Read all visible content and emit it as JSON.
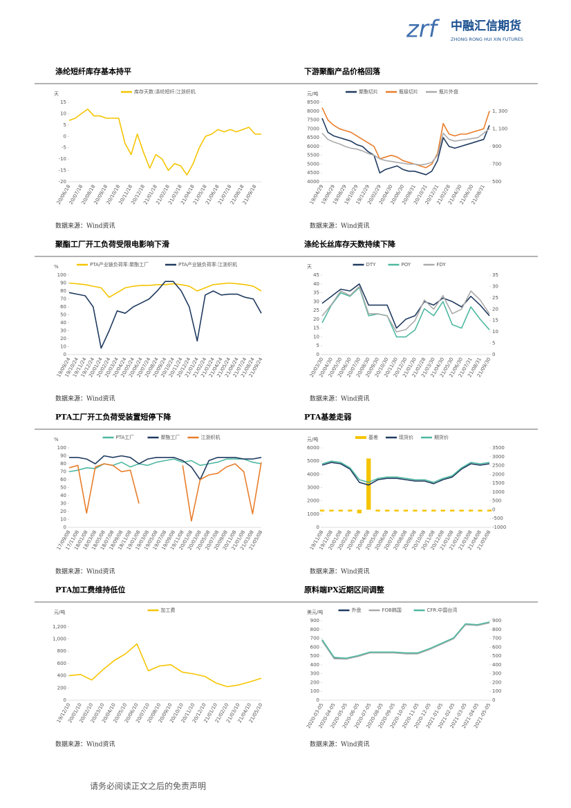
{
  "header": {
    "mark": "zrf",
    "name": "中融汇信期货",
    "sub": "ZHONG RONG HUI XIN FUTURES"
  },
  "footer": "请务必阅读正文之后的免责声明",
  "chart_data": [
    {
      "type": "line",
      "title": "涤纶短纤库存基本持平",
      "source": "数据来源：Wind资讯",
      "yunit": "天",
      "categories": [
        "20/06/18",
        null,
        "20/07/18",
        null,
        "20/08/18",
        null,
        "20/09/18",
        null,
        "20/10/18",
        null,
        "20/11/18",
        null,
        "20/12/18",
        null,
        "21/01/18",
        null,
        "21/02/18",
        null,
        "21/03/18",
        null,
        "21/04/18",
        null,
        "21/05/18",
        null,
        "21/06/18",
        null,
        "21/07/18",
        null,
        "21/08/18",
        null,
        "21/09/18",
        null
      ],
      "ylim": [
        -20,
        15
      ],
      "yticks": [
        -20,
        -15,
        -10,
        -5,
        0,
        5,
        10,
        15
      ],
      "series": [
        {
          "name": "库存天数:涤纶短纤:江浙织机",
          "color": "#f5c400",
          "values": [
            7,
            8,
            10,
            12,
            9,
            9,
            8,
            8,
            8,
            -3,
            -8,
            1,
            -7,
            -14,
            -8,
            -10,
            -15,
            -12,
            -13,
            -17,
            -12,
            -5,
            0,
            1,
            3,
            2,
            3,
            2,
            3,
            4,
            1,
            1
          ]
        }
      ]
    },
    {
      "type": "line",
      "title": "下游聚酯产品价格回落",
      "source": "数据来源：Wind资讯",
      "yunit": "元/吨",
      "categories": [
        "19/04/29",
        null,
        "19/06/29",
        null,
        "19/08/29",
        null,
        "19/10/29",
        null,
        "19/12/29",
        null,
        "20/02/29",
        null,
        "20/04/30",
        null,
        "20/06/30",
        null,
        "20/08/31",
        null,
        "20/10/31",
        null,
        "20/12/31",
        null,
        "21/02/28",
        null,
        "21/04/30",
        null,
        "21/06/30",
        null,
        "21/08/31",
        null
      ],
      "ylim": [
        4000,
        8500
      ],
      "yticks": [
        4000,
        4500,
        5000,
        5500,
        6000,
        6500,
        7000,
        7500,
        8000,
        8500
      ],
      "y2lim": [
        500,
        1400
      ],
      "y2ticks": [
        500,
        700,
        900,
        {
          "value": 1100,
          "label": "1, 100"
        },
        {
          "value": 1300,
          "label": "1, 300"
        }
      ],
      "series": [
        {
          "name": "聚酯切片",
          "color": "#1f3a5f",
          "values": [
            7600,
            6800,
            6600,
            6500,
            6400,
            6300,
            6100,
            6000,
            5700,
            5500,
            4500,
            4700,
            4800,
            4900,
            4700,
            4600,
            4600,
            4500,
            4400,
            4600,
            5200,
            6500,
            6000,
            5900,
            6000,
            6100,
            6200,
            6300,
            6400,
            7200
          ]
        },
        {
          "name": "瓶级切片",
          "color": "#e87d2a",
          "values": [
            8200,
            7500,
            7200,
            7000,
            6900,
            6800,
            6600,
            6400,
            6200,
            6000,
            5300,
            5400,
            5500,
            5400,
            5200,
            5100,
            5000,
            4900,
            4800,
            5000,
            5600,
            7300,
            6700,
            6600,
            6700,
            6700,
            6800,
            6900,
            7000,
            8000
          ]
        },
        {
          "name": "瓶片外盘",
          "color": "#aaaaaa",
          "axis": "y2",
          "values": [
            1050,
            980,
            950,
            930,
            900,
            880,
            870,
            850,
            820,
            800,
            760,
            740,
            730,
            720,
            710,
            700,
            700,
            690,
            700,
            720,
            800,
            1050,
            980,
            960,
            970,
            980,
            990,
            1000,
            1050,
            1100
          ]
        }
      ]
    },
    {
      "type": "line",
      "title": "聚酯工厂开工负荷受限电影响下滑",
      "source": "数据来源：Wind资讯",
      "yunit": "%",
      "categories": [
        "19/09/24",
        "19/10/24",
        "19/11/24",
        "19/12/24",
        "20/01/24",
        "20/02/24",
        "20/03/24",
        "20/04/24",
        "20/05/24",
        "20/06/24",
        "20/07/24",
        "20/08/24",
        "20/09/24",
        "20/10/24",
        "20/11/24",
        "20/12/24",
        "21/01/24",
        "21/02/24",
        "21/03/24",
        "21/04/24",
        "21/05/24",
        "21/06/24",
        "21/07/24",
        "21/08/24",
        "21/09/24"
      ],
      "ylim": [
        0,
        100
      ],
      "yticks": [
        0,
        10,
        20,
        30,
        40,
        50,
        60,
        70,
        80,
        90,
        100
      ],
      "series": [
        {
          "name": "PTA产业链负荷率:聚酯工厂",
          "color": "#f5c400",
          "values": [
            90,
            89,
            88,
            86,
            84,
            72,
            78,
            84,
            86,
            87,
            87,
            88,
            88,
            89,
            88,
            86,
            80,
            84,
            88,
            89,
            90,
            89,
            88,
            86,
            80
          ]
        },
        {
          "name": "PTA产业链负荷率:江浙织机",
          "color": "#1f3a5f",
          "values": [
            78,
            76,
            74,
            60,
            8,
            30,
            55,
            52,
            60,
            65,
            70,
            80,
            92,
            92,
            80,
            60,
            17,
            75,
            80,
            75,
            76,
            76,
            72,
            70,
            52
          ]
        }
      ]
    },
    {
      "type": "line",
      "title": "涤纶长丝库存天数持续下降",
      "source": "数据来源：Wind资讯",
      "yunit": "天",
      "categories": [
        "20/03/30",
        "20/04/30",
        "20/05/30",
        "20/06/30",
        "20/07/30",
        "20/08/30",
        "20/09/30",
        "20/10/30",
        "20/11/30",
        "20/12/30",
        "21/01/30",
        "21/02/28",
        "21/03/30",
        "21/04/30",
        "21/05/30",
        "21/06/30",
        "21/07/31",
        "21/08/31",
        "21/09/30"
      ],
      "ylim": [
        0,
        45
      ],
      "yticks": [
        0,
        5,
        10,
        15,
        20,
        25,
        30,
        35,
        40,
        45
      ],
      "y2lim": [
        0,
        35
      ],
      "y2ticks": [
        0,
        5,
        10,
        15,
        20,
        25,
        30,
        35
      ],
      "series": [
        {
          "name": "DTY",
          "color": "#1f3a5f",
          "values": [
            29,
            33,
            37,
            36,
            40,
            28,
            28,
            28,
            15,
            20,
            22,
            30,
            28,
            32,
            30,
            27,
            33,
            28,
            22
          ]
        },
        {
          "name": "POY",
          "color": "#4db8a0",
          "values": [
            18,
            28,
            35,
            33,
            38,
            22,
            23,
            22,
            10,
            10,
            14,
            26,
            22,
            30,
            17,
            15,
            27,
            20,
            14
          ]
        },
        {
          "name": "FDY",
          "color": "#aaaaaa",
          "axis": "y2",
          "values": [
            17,
            22,
            28,
            26,
            30,
            18,
            18,
            17,
            10,
            11,
            15,
            24,
            20,
            26,
            18,
            20,
            28,
            24,
            18
          ]
        }
      ]
    },
    {
      "type": "line",
      "title": "PTA工厂开工负荷受装置短停下降",
      "source": "数据来源：Wind资讯",
      "yunit": "%",
      "categories": [
        "17/09/08",
        "17/11/08",
        "18/01/08",
        "18/03/08",
        "18/05/08",
        "18/07/08",
        "18/09/08",
        "18/11/08",
        "19/01/08",
        "19/03/08",
        "19/05/08",
        "19/07/08",
        "19/09/08",
        "19/11/08",
        "20/01/08",
        "20/03/08",
        "20/05/08",
        "20/07/08",
        "20/09/08",
        "20/11/08",
        "21/01/08",
        "21/03/08",
        "21/05/08"
      ],
      "ylim": [
        0,
        100
      ],
      "yticks": [
        0,
        10,
        20,
        30,
        40,
        50,
        60,
        70,
        80,
        90,
        100
      ],
      "series": [
        {
          "name": "PTA工厂",
          "color": "#4db8a0",
          "values": [
            70,
            72,
            75,
            74,
            80,
            78,
            82,
            76,
            80,
            78,
            82,
            84,
            86,
            82,
            84,
            78,
            80,
            82,
            86,
            86,
            86,
            82,
            80
          ]
        },
        {
          "name": "聚酯工厂",
          "color": "#1f3a5f",
          "values": [
            88,
            88,
            86,
            80,
            90,
            88,
            90,
            88,
            80,
            86,
            88,
            88,
            88,
            84,
            76,
            60,
            84,
            88,
            88,
            88,
            86,
            86,
            88
          ]
        },
        {
          "name": "江浙织机",
          "color": "#e87d2a",
          "values": [
            75,
            78,
            18,
            76,
            80,
            78,
            70,
            72,
            30,
            null,
            null,
            null,
            null,
            78,
            8,
            60,
            66,
            68,
            76,
            80,
            70,
            17,
            82
          ]
        }
      ]
    },
    {
      "type": "line",
      "title": "PTA基差走弱",
      "source": "数据来源：Wind资讯",
      "yunit": "元/吨",
      "categories": [
        "19/11/08",
        "19/12/08",
        "20/01/08",
        "20/02/08",
        "20/03/08",
        "20/04/08",
        "20/05/08",
        "20/06/08",
        "20/07/08",
        "20/08/08",
        "20/09/08",
        "20/10/08",
        "20/11/08",
        "20/12/08",
        "21/01/08",
        "21/02/08",
        "21/03/08",
        "21/04/08",
        "21/05/08"
      ],
      "ylim": [
        0,
        6000
      ],
      "yticks": [
        0,
        1000,
        2000,
        3000,
        4000,
        5000,
        6000
      ],
      "y2lim": [
        -1000,
        3500
      ],
      "y2ticks": [
        -1000,
        -500,
        0,
        500,
        1000,
        1500,
        2000,
        2500,
        3000,
        3500
      ],
      "series": [
        {
          "name": "基差",
          "color": "#f5c400",
          "axis": "y2",
          "type": "bar",
          "values": [
            -100,
            -100,
            -100,
            -100,
            -200,
            2900,
            -100,
            -100,
            -100,
            -100,
            -100,
            -100,
            -100,
            -100,
            -100,
            -100,
            -100,
            -100,
            -100
          ]
        },
        {
          "name": "现货价",
          "color": "#1f3a5f",
          "values": [
            4700,
            4900,
            4800,
            4400,
            3400,
            3200,
            3600,
            3700,
            3700,
            3600,
            3500,
            3500,
            3300,
            3600,
            3800,
            4400,
            4800,
            4700,
            4800
          ]
        },
        {
          "name": "期货价",
          "color": "#4db8a0",
          "values": [
            4800,
            5000,
            4900,
            4500,
            3600,
            3400,
            3700,
            3800,
            3800,
            3700,
            3600,
            3600,
            3400,
            3700,
            3900,
            4500,
            4900,
            4800,
            4900
          ]
        }
      ]
    },
    {
      "type": "line",
      "title": "PTA加工费维持低位",
      "source": "数据来源：Wind资讯",
      "yunit": "元/吨",
      "categories": [
        "19/12/10",
        "20/01/10",
        "20/02/10",
        "20/03/10",
        "20/04/10",
        "20/05/10",
        "20/06/10",
        "20/07/10",
        "20/08/10",
        "20/09/10",
        "20/10/10",
        "20/11/10",
        "20/12/10",
        "21/01/10",
        "21/02/10",
        "21/03/10",
        "21/04/10",
        "21/05/10"
      ],
      "ylim": [
        0,
        1300
      ],
      "yticks": [
        0,
        200,
        400,
        600,
        800,
        {
          "value": 1000,
          "label": "1,000"
        },
        {
          "value": 1200,
          "label": "1,200"
        }
      ],
      "series": [
        {
          "name": "加工费",
          "color": "#f5c400",
          "values": [
            400,
            420,
            330,
            500,
            650,
            760,
            920,
            480,
            560,
            580,
            460,
            430,
            390,
            280,
            220,
            250,
            300,
            360
          ]
        }
      ]
    },
    {
      "type": "line",
      "title": "原料端PX近期区间调整",
      "source": "数据来源：Wind资讯",
      "yunit": "美元/吨",
      "categories": [
        "2020-03-05",
        "2020-04-05",
        "2020-05-05",
        "2020-06-05",
        "2020-07-05",
        "2020-08-05",
        "2020-09-05",
        "2020-10-05",
        "2020-11-05",
        "2020-12-05",
        "2021-01-05",
        "2021-02-05",
        "2021-03-05",
        "2021-04-05",
        "2021-05-05"
      ],
      "ylim": [
        0,
        900
      ],
      "yticks": [
        0,
        100,
        200,
        300,
        400,
        500,
        600,
        700,
        800,
        900
      ],
      "y2lim": [
        0,
        900
      ],
      "y2ticks": [
        0,
        100,
        200,
        300,
        400,
        500,
        600,
        700,
        800,
        900
      ],
      "series": [
        {
          "name": "外盘",
          "color": "#1f3a5f",
          "values": [
            680,
            480,
            470,
            500,
            540,
            540,
            540,
            530,
            530,
            580,
            640,
            700,
            860,
            850,
            880
          ]
        },
        {
          "name": "FOB韩国",
          "color": "#aaaaaa",
          "values": [
            670,
            470,
            465,
            495,
            535,
            535,
            535,
            525,
            525,
            575,
            635,
            695,
            855,
            845,
            875
          ]
        },
        {
          "name": "CFR:中国台湾",
          "color": "#4db8a0",
          "axis": "y2",
          "values": [
            685,
            485,
            475,
            505,
            545,
            545,
            545,
            535,
            535,
            585,
            645,
            705,
            865,
            855,
            885
          ]
        }
      ]
    }
  ]
}
